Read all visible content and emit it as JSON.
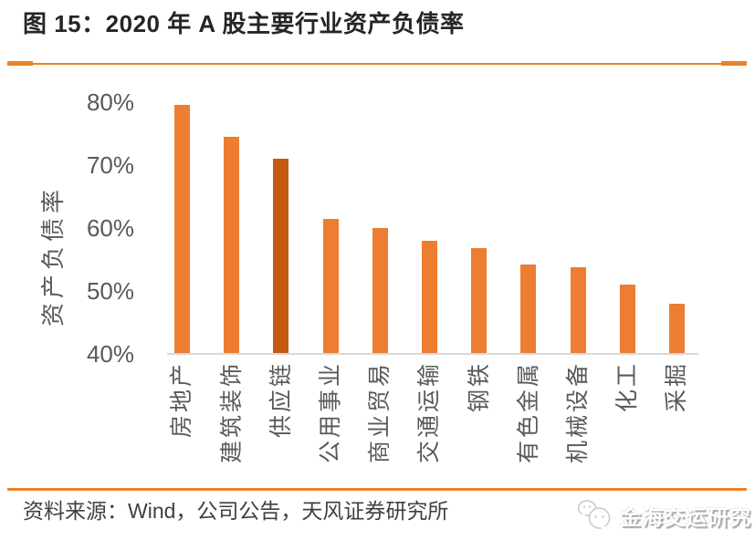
{
  "figure": {
    "title": "图 15：2020 年 A 股主要行业资产负债率",
    "source": "资料来源：Wind，公司公告，天风证券研究所",
    "watermark": "金海交运研究"
  },
  "colors": {
    "bar": "#ED7D31",
    "bar_highlight": "#C55A11",
    "rule": "#EE8125",
    "axis_text": "#595959",
    "axis_line": "#D9D9D9",
    "title_text": "#262626",
    "source_text": "#404040"
  },
  "chart_data": {
    "type": "bar",
    "title": "2020 年 A 股主要行业资产负债率",
    "categories": [
      "房地产",
      "建筑装饰",
      "供应链",
      "公用事业",
      "商业贸易",
      "交通运输",
      "钢铁",
      "有色金属",
      "机械设备",
      "化工",
      "采掘"
    ],
    "values": [
      79.5,
      74.5,
      71.0,
      61.5,
      60.0,
      58.0,
      56.8,
      54.2,
      53.8,
      51.0,
      48.0
    ],
    "unit": "%",
    "highlight_index": 2,
    "highlight_category": "供应链",
    "ylabel": "资产负债率",
    "xlabel": "",
    "yticks": [
      "40%",
      "50%",
      "60%",
      "70%",
      "80%"
    ],
    "ylim": [
      40,
      80
    ],
    "grid": false,
    "legend_position": "none"
  }
}
